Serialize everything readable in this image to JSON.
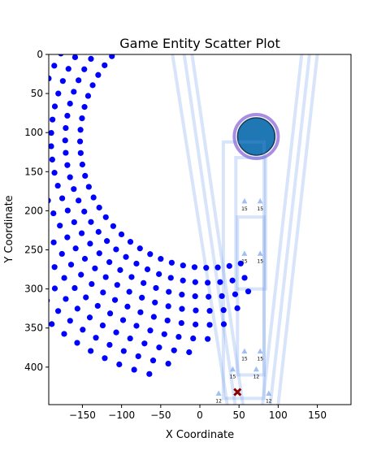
{
  "chart_data": {
    "type": "scatter",
    "title": "Game Entity Scatter Plot",
    "xlabel": "X Coordinate",
    "ylabel": "Y Coordinate",
    "xlim": [
      -193,
      193
    ],
    "ylim": [
      448,
      0
    ],
    "y_inverted": true,
    "grid": false,
    "x_ticks": [
      -150,
      -100,
      -50,
      0,
      50,
      100,
      150
    ],
    "y_ticks": [
      0,
      50,
      100,
      150,
      200,
      250,
      300,
      350,
      400
    ],
    "colors": {
      "dots": "#0000ff",
      "big_circle": "#1f77b4",
      "big_circle_ring": "#9370db",
      "beams": "#6495ed",
      "small_markers": "#6495ed",
      "player_marker": "#8b0000"
    },
    "dot_arcs": [
      {
        "center": [
          10,
          110
        ],
        "radius": 163,
        "angle_from": 75,
        "angle_to": 305,
        "count": 45
      },
      {
        "center": [
          10,
          110
        ],
        "radius": 182,
        "angle_from": 75,
        "angle_to": 310,
        "count": 48
      },
      {
        "center": [
          10,
          110
        ],
        "radius": 200,
        "angle_from": 75,
        "angle_to": 315,
        "count": 50
      },
      {
        "center": [
          10,
          110
        ],
        "radius": 218,
        "angle_from": 80,
        "angle_to": 318,
        "count": 52
      },
      {
        "center": [
          10,
          110
        ],
        "radius": 236,
        "angle_from": 85,
        "angle_to": 322,
        "count": 55
      },
      {
        "center": [
          10,
          110
        ],
        "radius": 254,
        "angle_from": 90,
        "angle_to": 325,
        "count": 57
      },
      {
        "center": [
          10,
          110
        ],
        "radius": 272,
        "angle_from": 95,
        "angle_to": 328,
        "count": 58
      },
      {
        "center": [
          10,
          110
        ],
        "radius": 290,
        "angle_from": 100,
        "angle_to": 330,
        "count": 60
      },
      {
        "center": [
          10,
          110
        ],
        "radius": 308,
        "angle_from": 104,
        "angle_to": 333,
        "count": 62
      }
    ],
    "big_circle": {
      "x": 72,
      "y": 105,
      "label": ""
    },
    "beams": [
      {
        "from": [
          -35,
          0
        ],
        "to": [
          35,
          448
        ]
      },
      {
        "from": [
          -20,
          0
        ],
        "to": [
          45,
          448
        ]
      },
      {
        "from": [
          140,
          0
        ],
        "to": [
          90,
          448
        ]
      },
      {
        "from": [
          150,
          0
        ],
        "to": [
          100,
          448
        ]
      },
      {
        "from": [
          -10,
          0
        ],
        "to": [
          55,
          448
        ]
      },
      {
        "from": [
          130,
          0
        ],
        "to": [
          80,
          448
        ]
      }
    ],
    "boxes": [
      {
        "x": [
          30,
          82
        ],
        "y": [
          112,
          440
        ]
      },
      {
        "x": [
          46,
          84
        ],
        "y": [
          132,
          300
        ]
      },
      {
        "x": [
          48,
          82
        ],
        "y": [
          208,
          410
        ]
      }
    ],
    "small_markers": [
      {
        "x": 57,
        "y": 188,
        "label": "15"
      },
      {
        "x": 77,
        "y": 188,
        "label": "15"
      },
      {
        "x": 57,
        "y": 255,
        "label": "15"
      },
      {
        "x": 77,
        "y": 255,
        "label": "15"
      },
      {
        "x": 57,
        "y": 380,
        "label": "15"
      },
      {
        "x": 77,
        "y": 380,
        "label": "15"
      },
      {
        "x": 42,
        "y": 403,
        "label": "15"
      },
      {
        "x": 72,
        "y": 403,
        "label": "12"
      },
      {
        "x": 24,
        "y": 434,
        "label": "12"
      },
      {
        "x": 88,
        "y": 434,
        "label": "12"
      }
    ],
    "player": {
      "x": 48,
      "y": 432
    }
  }
}
